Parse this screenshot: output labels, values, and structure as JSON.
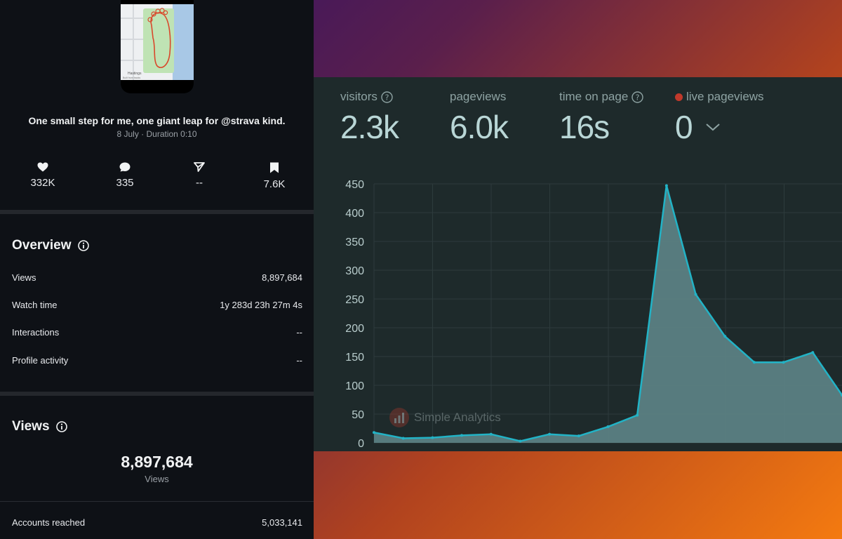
{
  "post": {
    "caption": "One small step for me, one giant leap for @strava kind.",
    "meta": "8 July · Duration 0:10",
    "map_labels": [
      "Hastings",
      "Built from tracks"
    ]
  },
  "actions": [
    {
      "icon": "heart-icon",
      "count": "332K"
    },
    {
      "icon": "comment-icon",
      "count": "335"
    },
    {
      "icon": "share-icon",
      "count": "--"
    },
    {
      "icon": "bookmark-icon",
      "count": "7.6K"
    }
  ],
  "overview": {
    "title": "Overview",
    "rows": [
      {
        "label": "Views",
        "value": "8,897,684"
      },
      {
        "label": "Watch time",
        "value": "1y 283d 23h 27m 4s"
      },
      {
        "label": "Interactions",
        "value": "--"
      },
      {
        "label": "Profile activity",
        "value": "--"
      }
    ]
  },
  "views": {
    "title": "Views",
    "total": "8,897,684",
    "total_label": "Views",
    "accounts_reached_label": "Accounts reached",
    "accounts_reached_value": "5,033,141"
  },
  "analytics": {
    "metrics": [
      {
        "label": "visitors",
        "value": "2.3k",
        "help": true
      },
      {
        "label": "pageviews",
        "value": "6.0k",
        "help": false
      },
      {
        "label": "time on page",
        "value": "16s",
        "help": true
      },
      {
        "label": "live pageviews",
        "value": "0",
        "help": false,
        "live": true
      }
    ],
    "watermark": "Simple Analytics",
    "colors": {
      "line": "#22b3c6",
      "fill": "#5b7f83",
      "grid": "#2d3b3c"
    }
  },
  "chart_data": {
    "type": "area",
    "y_ticks": [
      0,
      50,
      100,
      150,
      200,
      250,
      300,
      350,
      400,
      450
    ],
    "ylim": [
      0,
      450
    ],
    "values": [
      18,
      8,
      9,
      13,
      15,
      3,
      15,
      12,
      28,
      48,
      447,
      258,
      185,
      140,
      140,
      157,
      83
    ],
    "grid": true
  }
}
